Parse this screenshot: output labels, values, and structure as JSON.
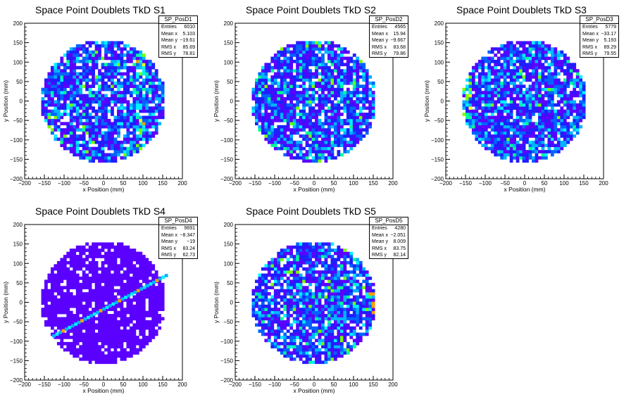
{
  "chart_data": [
    {
      "type": "heatmap",
      "title": "Space Point Doublets TkD S1",
      "xlabel": "x Position (mm)",
      "ylabel": "y Position (mm)",
      "xlim": [
        -200,
        200
      ],
      "ylim": [
        -200,
        200
      ],
      "xticks": [
        "−200",
        "−150",
        "−100",
        "−50",
        "0",
        "50",
        "100",
        "150",
        "200"
      ],
      "yticks": [
        "−200",
        "−150",
        "−100",
        "−50",
        "0",
        "50",
        "100",
        "150",
        "200"
      ],
      "stats": {
        "name": "SP_PosD1",
        "rows": [
          [
            "Entries",
            "6010"
          ],
          [
            "Mean x",
            "5.103"
          ],
          [
            "Mean y",
            "−19.61"
          ],
          [
            "RMS x",
            "85.69"
          ],
          [
            "RMS y",
            "78.81"
          ]
        ]
      },
      "features": [
        [
          95,
          0,
          0.45
        ]
      ]
    },
    {
      "type": "heatmap",
      "title": "Space Point Doublets TkD S2",
      "xlabel": "x Position (mm)",
      "ylabel": "y Position (mm)",
      "xlim": [
        -200,
        200
      ],
      "ylim": [
        -200,
        200
      ],
      "xticks": [
        "−200",
        "−150",
        "−100",
        "−50",
        "0",
        "50",
        "100",
        "150",
        "200"
      ],
      "yticks": [
        "−200",
        "−150",
        "−100",
        "−50",
        "0",
        "50",
        "100",
        "150",
        "200"
      ],
      "stats": {
        "name": "SP_PosD2",
        "rows": [
          [
            "Entries",
            "4565"
          ],
          [
            "Mean x",
            "15.94"
          ],
          [
            "Mean y",
            "−9.667"
          ],
          [
            "RMS x",
            "83.68"
          ],
          [
            "RMS y",
            "79.86"
          ]
        ]
      },
      "features": []
    },
    {
      "type": "heatmap",
      "title": "Space Point Doublets TkD S3",
      "xlabel": "x Position (mm)",
      "ylabel": "y Position (mm)",
      "xlim": [
        -200,
        200
      ],
      "ylim": [
        -200,
        200
      ],
      "xticks": [
        "−200",
        "−150",
        "−100",
        "−50",
        "0",
        "50",
        "100",
        "150",
        "200"
      ],
      "yticks": [
        "−200",
        "−150",
        "−100",
        "−50",
        "0",
        "50",
        "100",
        "150",
        "200"
      ],
      "stats": {
        "name": "SP_PosD3",
        "rows": [
          [
            "Entries",
            "5779"
          ],
          [
            "Mean x",
            "−33.17"
          ],
          [
            "Mean y",
            "5.193"
          ],
          [
            "RMS x",
            "89.29"
          ],
          [
            "RMS y",
            "79.55"
          ]
        ]
      },
      "features": [
        [
          -150,
          0,
          0.6
        ]
      ]
    },
    {
      "type": "heatmap",
      "title": "Space Point Doublets TkD S4",
      "xlabel": "x Position (mm)",
      "ylabel": "y Position (mm)",
      "xlim": [
        -200,
        200
      ],
      "ylim": [
        -200,
        200
      ],
      "xticks": [
        "−200",
        "−150",
        "−100",
        "−50",
        "0",
        "50",
        "100",
        "150",
        "200"
      ],
      "yticks": [
        "−200",
        "−150",
        "−100",
        "−50",
        "0",
        "50",
        "100",
        "150",
        "200"
      ],
      "stats": {
        "name": "SP_PosD4",
        "rows": [
          [
            "Entries",
            "9691"
          ],
          [
            "Mean x",
            "−8.347"
          ],
          [
            "Mean y",
            "−19"
          ],
          [
            "RMS x",
            "83.24"
          ],
          [
            "RMS y",
            "62.73"
          ]
        ]
      },
      "features": [],
      "diagonal": {
        "from": [
          -130,
          -90
        ],
        "to": [
          155,
          65
        ]
      }
    },
    {
      "type": "heatmap",
      "title": "Space Point Doublets TkD S5",
      "xlabel": "x Position (mm)",
      "ylabel": "y Position (mm)",
      "xlim": [
        -200,
        200
      ],
      "ylim": [
        -200,
        200
      ],
      "xticks": [
        "−200",
        "−150",
        "−100",
        "−50",
        "0",
        "50",
        "100",
        "150",
        "200"
      ],
      "yticks": [
        "−200",
        "−150",
        "−100",
        "−50",
        "0",
        "50",
        "100",
        "150",
        "200"
      ],
      "stats": {
        "name": "SP_PosD5",
        "rows": [
          [
            "Entries",
            "4280"
          ],
          [
            "Mean x",
            "−2.051"
          ],
          [
            "Mean y",
            "8.009"
          ],
          [
            "RMS x",
            "83.75"
          ],
          [
            "RMS y",
            "82.14"
          ]
        ]
      },
      "features": []
    }
  ],
  "colors": {
    "palette": [
      "#5a00ff",
      "#1e1eff",
      "#0064ff",
      "#00b4ff",
      "#00f0ff",
      "#00ff96",
      "#78ff00",
      "#ffff00",
      "#ffa000",
      "#ff0000"
    ],
    "frame": "#000000",
    "background": "#ffffff"
  }
}
